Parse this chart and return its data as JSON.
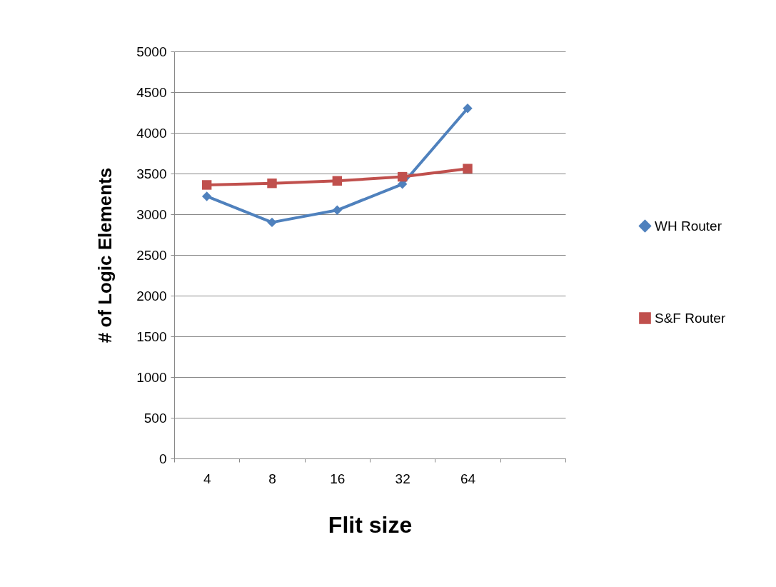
{
  "chart_data": {
    "type": "line",
    "xlabel": "Flit size",
    "ylabel": "# of Logic Elements",
    "categories": [
      "4",
      "8",
      "16",
      "32",
      "64",
      null
    ],
    "series": [
      {
        "name": "WH Router",
        "color": "#4f81bd",
        "marker": "diamond",
        "values": [
          3220,
          2900,
          3050,
          3370,
          4300,
          null
        ]
      },
      {
        "name": "S&F Router",
        "color": "#c0504d",
        "marker": "square",
        "values": [
          3360,
          3380,
          3410,
          3460,
          3560,
          null
        ]
      }
    ],
    "ylim": [
      0,
      5000
    ],
    "yticks": [
      0,
      500,
      1000,
      1500,
      2000,
      2500,
      3000,
      3500,
      4000,
      4500,
      5000
    ],
    "grid": "y",
    "legend": "right"
  }
}
